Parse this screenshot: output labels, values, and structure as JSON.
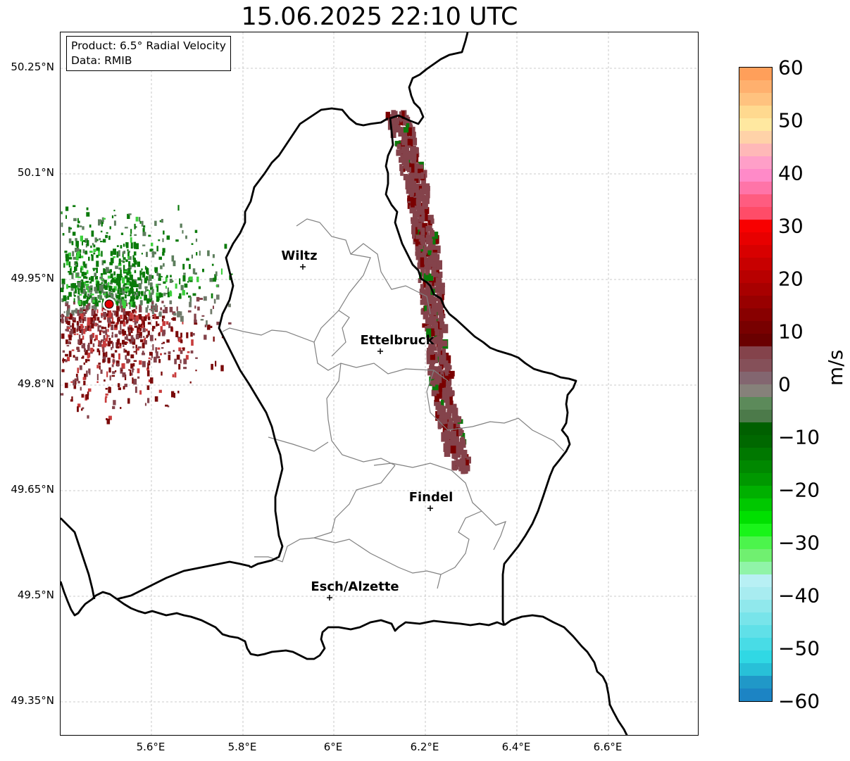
{
  "title": "15.06.2025 22:10 UTC",
  "info_box": {
    "product": "Product: 6.5° Radial Velocity",
    "data": "Data: RMIB"
  },
  "axes": {
    "x_ticks": [
      "5.6°E",
      "5.8°E",
      "6°E",
      "6.2°E",
      "6.4°E",
      "6.6°E"
    ],
    "y_ticks": [
      "50.25°N",
      "50.1°N",
      "49.95°N",
      "49.8°N",
      "49.65°N",
      "49.5°N",
      "49.35°N"
    ],
    "grid": "dashed"
  },
  "cities": [
    {
      "name": "Wiltz"
    },
    {
      "name": "Ettelbruck"
    },
    {
      "name": "Findel"
    },
    {
      "name": "Esch/Alzette"
    }
  ],
  "colorbar": {
    "unit": "m/s",
    "ticks": [
      "60",
      "50",
      "40",
      "30",
      "20",
      "10",
      "0",
      "−10",
      "−20",
      "−30",
      "−40",
      "−50",
      "−60"
    ],
    "range": [
      -60,
      60
    ],
    "colors_top_to_bottom": [
      "#ff9f5a",
      "#ffb06e",
      "#ffc27f",
      "#ffd98f",
      "#ffe8a0",
      "#ffd2a8",
      "#ffb8b8",
      "#ff9fc8",
      "#ff8ac8",
      "#ff74a8",
      "#ff5c80",
      "#ff4c68",
      "#f80000",
      "#e80000",
      "#d80000",
      "#c80000",
      "#b80000",
      "#a80000",
      "#980000",
      "#880000",
      "#780000",
      "#6a0000",
      "#84434b",
      "#855059",
      "#836670",
      "#86817a",
      "#5c8a5a",
      "#4c7a4a",
      "#006000",
      "#006800",
      "#007800",
      "#008800",
      "#009800",
      "#00b000",
      "#00c800",
      "#00e000",
      "#19f419",
      "#4cf44c",
      "#70f070",
      "#90f4a8",
      "#b8f0f4",
      "#a8ecf0",
      "#90e8ec",
      "#78e4ea",
      "#60e0e8",
      "#48dce6",
      "#30d8e4",
      "#28c0d8",
      "#2098c8",
      "#1c84c4"
    ]
  },
  "radar_site_color": "#e00000",
  "velocity_colors": {
    "inbound": "#0a7a0a",
    "outbound": "#7a0a0a",
    "near_zero": "#84434b"
  }
}
